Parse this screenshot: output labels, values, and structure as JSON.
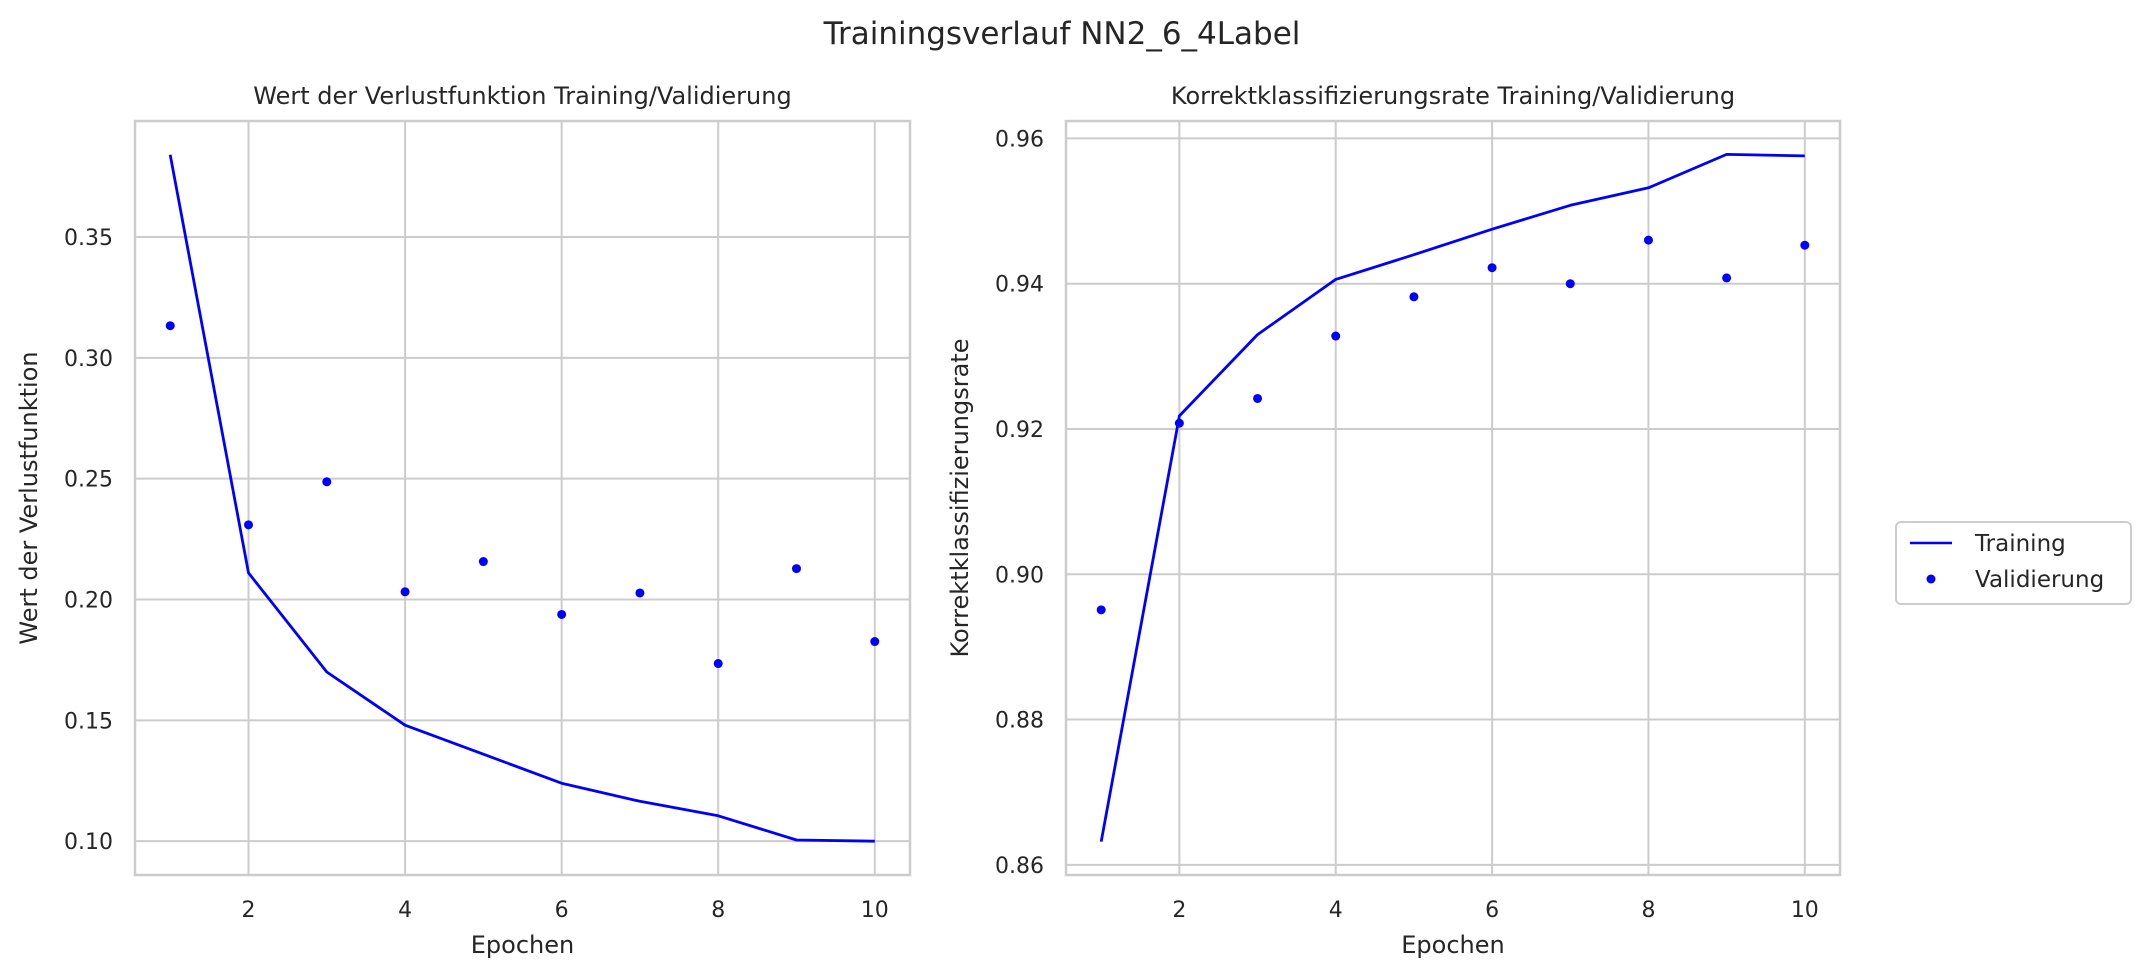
{
  "figure": {
    "suptitle": "Trainingsverlauf NN2_6_4Label"
  },
  "legend": {
    "placement": "right",
    "entries": [
      {
        "label": "Training",
        "marker": "line"
      },
      {
        "label": "Validierung",
        "marker": "dot"
      }
    ]
  },
  "colors": {
    "series": "#0000ff",
    "grid": "#cccccc",
    "text": "#262626"
  },
  "chart_data": [
    {
      "type": "line",
      "title": "Wert der Verlustfunktion Training/Validierung",
      "xlabel": "Epochen",
      "ylabel": "Wert der Verlustfunktion",
      "xlim": [
        0.55,
        10.45
      ],
      "ylim": [
        0.086,
        0.398
      ],
      "xticks": [
        2,
        4,
        6,
        8,
        10
      ],
      "yticks": [
        0.1,
        0.15,
        0.2,
        0.25,
        0.3,
        0.35
      ],
      "ytick_labels": [
        "0.10",
        "0.15",
        "0.20",
        "0.25",
        "0.30",
        "0.35"
      ],
      "grid": true,
      "x": [
        1,
        2,
        3,
        4,
        5,
        6,
        7,
        8,
        9,
        10
      ],
      "series": [
        {
          "name": "Training",
          "style": "line",
          "values": [
            0.384,
            0.211,
            0.17,
            0.148,
            0.136,
            0.124,
            0.1165,
            0.1105,
            0.1005,
            0.1
          ]
        },
        {
          "name": "Validierung",
          "style": "dot",
          "values": [
            0.3133,
            0.2309,
            0.2487,
            0.2032,
            0.2157,
            0.1938,
            0.2027,
            0.1735,
            0.2128,
            0.1826
          ]
        }
      ]
    },
    {
      "type": "line",
      "title": "Korrektklassifizierungsrate Training/Validierung",
      "xlabel": "Epochen",
      "ylabel": "Korrektklassifizierungsrate",
      "xlim": [
        0.55,
        10.45
      ],
      "ylim": [
        0.8586,
        0.9624
      ],
      "xticks": [
        2,
        4,
        6,
        8,
        10
      ],
      "yticks": [
        0.86,
        0.88,
        0.9,
        0.92,
        0.94,
        0.96
      ],
      "ytick_labels": [
        "0.86",
        "0.88",
        "0.90",
        "0.92",
        "0.94",
        "0.96"
      ],
      "grid": true,
      "x": [
        1,
        2,
        3,
        4,
        5,
        6,
        7,
        8,
        9,
        10
      ],
      "series": [
        {
          "name": "Training",
          "style": "line",
          "values": [
            0.8632,
            0.9218,
            0.933,
            0.9406,
            0.944,
            0.9475,
            0.9508,
            0.9532,
            0.9578,
            0.9576
          ]
        },
        {
          "name": "Validierung",
          "style": "dot",
          "values": [
            0.8951,
            0.9208,
            0.9242,
            0.9328,
            0.9382,
            0.9422,
            0.94,
            0.946,
            0.9408,
            0.9453
          ]
        }
      ]
    }
  ]
}
